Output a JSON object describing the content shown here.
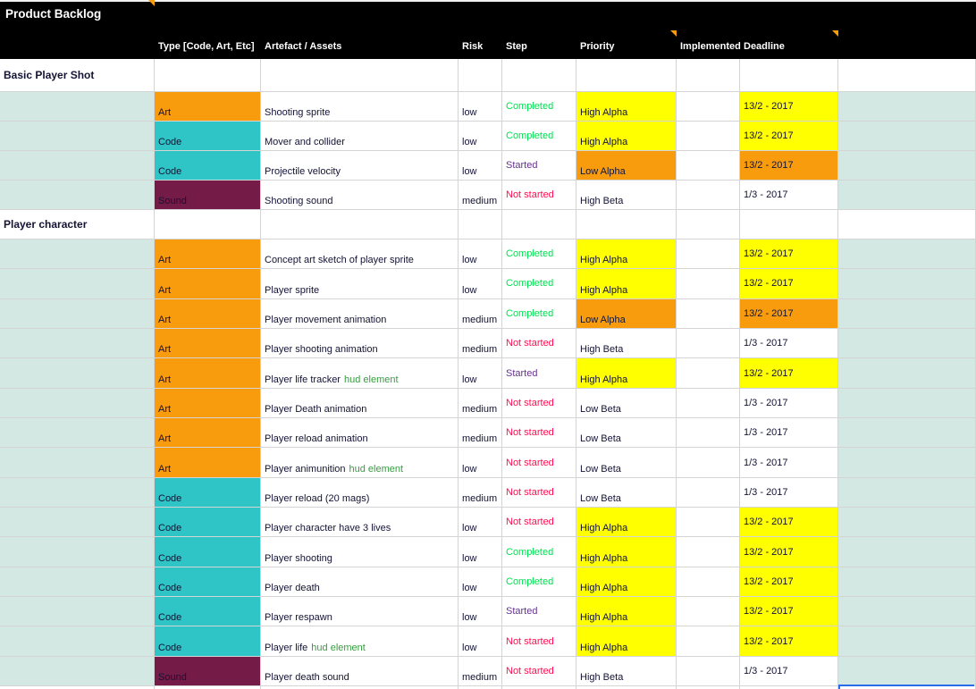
{
  "sheet_title": "Product Backlog",
  "column_headers": {
    "section": "",
    "type": "Type [Code, Art, Etc]",
    "artefact": "Artefact / Assets",
    "risk": "Risk",
    "step": "Step",
    "priority": "Priority",
    "implemented": "Implemented",
    "deadline": "Deadline",
    "trailing": ""
  },
  "comment_markers": [
    "title-cell",
    "priority-header",
    "deadline-header"
  ],
  "sections": [
    {
      "name": "Basic Player Shot",
      "rows": [
        {
          "type": "Art",
          "artefact": "Shooting sprite",
          "note": "",
          "risk": "low",
          "step": "Completed",
          "priority": "High Alpha",
          "implemented": "",
          "deadline": "13/2 - 2017"
        },
        {
          "type": "Code",
          "artefact": "Mover and collider",
          "note": "",
          "risk": "low",
          "step": "Completed",
          "priority": "High Alpha",
          "implemented": "",
          "deadline": "13/2 - 2017"
        },
        {
          "type": "Code",
          "artefact": "Projectile velocity",
          "note": "",
          "risk": "low",
          "step": "Started",
          "priority": "Low Alpha",
          "implemented": "",
          "deadline": "13/2 - 2017"
        },
        {
          "type": "Sound",
          "artefact": "Shooting sound",
          "note": "",
          "risk": "medium",
          "step": "Not started",
          "priority": "High Beta",
          "implemented": "",
          "deadline": "1/3 - 2017"
        }
      ]
    },
    {
      "name": "Player character",
      "rows": [
        {
          "type": "Art",
          "artefact": "Concept art sketch of player sprite",
          "note": "",
          "risk": "low",
          "step": "Completed",
          "priority": "High Alpha",
          "implemented": "",
          "deadline": "13/2 - 2017"
        },
        {
          "type": "Art",
          "artefact": "Player sprite",
          "note": "",
          "risk": "low",
          "step": "Completed",
          "priority": "High Alpha",
          "implemented": "",
          "deadline": "13/2 - 2017"
        },
        {
          "type": "Art",
          "artefact": "Player movement animation",
          "note": "",
          "risk": "medium",
          "step": "Completed",
          "priority": "Low Alpha",
          "implemented": "",
          "deadline": "13/2 - 2017"
        },
        {
          "type": "Art",
          "artefact": "Player shooting animation",
          "note": "",
          "risk": "medium",
          "step": "Not started",
          "priority": "High Beta",
          "implemented": "",
          "deadline": "1/3 - 2017"
        },
        {
          "type": "Art",
          "artefact": "Player life tracker",
          "note": "hud element",
          "risk": "low",
          "step": "Started",
          "priority": "High Alpha",
          "implemented": "",
          "deadline": "13/2 - 2017"
        },
        {
          "type": "Art",
          "artefact": "Player Death animation",
          "note": "",
          "risk": "medium",
          "step": "Not started",
          "priority": "Low Beta",
          "implemented": "",
          "deadline": "1/3 - 2017"
        },
        {
          "type": "Art",
          "artefact": "Player reload animation",
          "note": "",
          "risk": "medium",
          "step": "Not started",
          "priority": "Low Beta",
          "implemented": "",
          "deadline": "1/3 - 2017"
        },
        {
          "type": "Art",
          "artefact": "Player animunition",
          "note": "hud element",
          "risk": "low",
          "step": "Not started",
          "priority": "Low Beta",
          "implemented": "",
          "deadline": "1/3 - 2017"
        },
        {
          "type": "Code",
          "artefact": "Player reload (20 mags)",
          "note": "",
          "risk": "medium",
          "step": "Not started",
          "priority": "Low Beta",
          "implemented": "",
          "deadline": "1/3 - 2017"
        },
        {
          "type": "Code",
          "artefact": "Player character have 3 lives",
          "note": "",
          "risk": "low",
          "step": "Not started",
          "priority": "High Alpha",
          "implemented": "",
          "deadline": "13/2 - 2017"
        },
        {
          "type": "Code",
          "artefact": "Player shooting",
          "note": "",
          "risk": "low",
          "step": "Completed",
          "priority": "High Alpha",
          "implemented": "",
          "deadline": "13/2 - 2017"
        },
        {
          "type": "Code",
          "artefact": "Player death",
          "note": "",
          "risk": "low",
          "step": "Completed",
          "priority": "High Alpha",
          "implemented": "",
          "deadline": "13/2 - 2017"
        },
        {
          "type": "Code",
          "artefact": "Player respawn",
          "note": "",
          "risk": "low",
          "step": "Started",
          "priority": "High Alpha",
          "implemented": "",
          "deadline": "13/2 - 2017"
        },
        {
          "type": "Code",
          "artefact": "Player life",
          "note": "hud element",
          "risk": "low",
          "step": "Not started",
          "priority": "High Alpha",
          "implemented": "",
          "deadline": "13/2 - 2017"
        },
        {
          "type": "Sound",
          "artefact": "Player death sound",
          "note": "",
          "risk": "medium",
          "step": "Not started",
          "priority": "High Beta",
          "implemented": "",
          "deadline": "1/3 - 2017"
        }
      ]
    }
  ],
  "colors": {
    "header_bg": "#000000",
    "header_text": "#ffffff",
    "type_colors": {
      "Art": "#f89c0e",
      "Code": "#2fc5c6",
      "Sound": "#741b47"
    },
    "step_colors": {
      "Completed": "#00e150",
      "Started": "#65318f",
      "Not started": "#ff0d50"
    },
    "priority_highlight": {
      "High Alpha": "#ffff00",
      "Low Alpha": "#f89c0e"
    },
    "row_stripe": "#d3e8e2",
    "note_green": "#349e3e",
    "comment_triangle": "#f89c0e",
    "selection_blue": "#2a6be9",
    "gridline": "#d4d4d4",
    "cell_text": "#131334"
  }
}
